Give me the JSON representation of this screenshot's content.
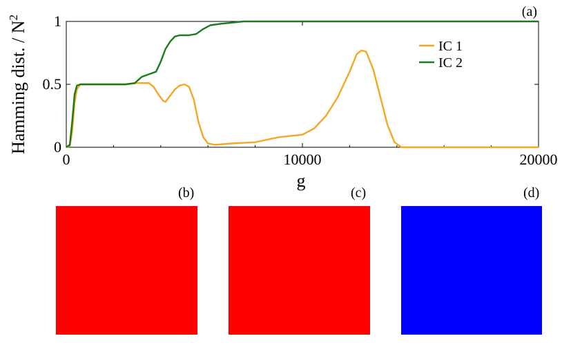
{
  "chart_data": {
    "type": "line",
    "panel_label": "(a)",
    "xlabel": "g",
    "ylabel": "Hamming dist. / N",
    "ylabel_superscript": "2",
    "xlim": [
      0,
      20000
    ],
    "ylim": [
      0,
      1
    ],
    "x_ticks": [
      0,
      10000,
      20000
    ],
    "x_tick_labels": [
      "0",
      "10000",
      "20000"
    ],
    "y_ticks": [
      0,
      0.5,
      1
    ],
    "y_tick_labels": [
      "0",
      "0.5",
      "1"
    ],
    "grid": false,
    "legend_position": "top-right",
    "series": [
      {
        "name": "IC 1",
        "color": "#f5a623",
        "points": [
          [
            0,
            0
          ],
          [
            150,
            0.01
          ],
          [
            250,
            0.12
          ],
          [
            350,
            0.35
          ],
          [
            450,
            0.46
          ],
          [
            600,
            0.5
          ],
          [
            1000,
            0.5
          ],
          [
            1500,
            0.5
          ],
          [
            2000,
            0.5
          ],
          [
            2500,
            0.5
          ],
          [
            3000,
            0.51
          ],
          [
            3300,
            0.51
          ],
          [
            3500,
            0.51
          ],
          [
            3700,
            0.48
          ],
          [
            3900,
            0.42
          ],
          [
            4100,
            0.37
          ],
          [
            4200,
            0.36
          ],
          [
            4400,
            0.41
          ],
          [
            4600,
            0.46
          ],
          [
            4800,
            0.49
          ],
          [
            5000,
            0.5
          ],
          [
            5200,
            0.48
          ],
          [
            5400,
            0.38
          ],
          [
            5600,
            0.2
          ],
          [
            5800,
            0.08
          ],
          [
            6000,
            0.03
          ],
          [
            6300,
            0.02
          ],
          [
            7000,
            0.03
          ],
          [
            8000,
            0.04
          ],
          [
            9000,
            0.08
          ],
          [
            10000,
            0.1
          ],
          [
            10500,
            0.15
          ],
          [
            11000,
            0.25
          ],
          [
            11500,
            0.4
          ],
          [
            12000,
            0.6
          ],
          [
            12300,
            0.74
          ],
          [
            12500,
            0.77
          ],
          [
            12700,
            0.76
          ],
          [
            13000,
            0.62
          ],
          [
            13300,
            0.4
          ],
          [
            13600,
            0.18
          ],
          [
            13900,
            0.04
          ],
          [
            14200,
            0
          ],
          [
            20000,
            0
          ]
        ]
      },
      {
        "name": "IC 2",
        "color": "#1a7a1a",
        "points": [
          [
            0,
            0
          ],
          [
            150,
            0.02
          ],
          [
            250,
            0.2
          ],
          [
            350,
            0.42
          ],
          [
            450,
            0.49
          ],
          [
            600,
            0.5
          ],
          [
            1000,
            0.5
          ],
          [
            1500,
            0.5
          ],
          [
            2000,
            0.5
          ],
          [
            2500,
            0.5
          ],
          [
            2900,
            0.51
          ],
          [
            3200,
            0.56
          ],
          [
            3500,
            0.58
          ],
          [
            3800,
            0.6
          ],
          [
            4000,
            0.68
          ],
          [
            4200,
            0.78
          ],
          [
            4400,
            0.84
          ],
          [
            4600,
            0.88
          ],
          [
            4800,
            0.89
          ],
          [
            5200,
            0.89
          ],
          [
            5500,
            0.9
          ],
          [
            5800,
            0.94
          ],
          [
            6100,
            0.97
          ],
          [
            6500,
            0.98
          ],
          [
            7000,
            0.99
          ],
          [
            7500,
            1.0
          ],
          [
            20000,
            1.0
          ]
        ]
      }
    ]
  },
  "panels": [
    {
      "label": "(b)",
      "color": "#ff0000"
    },
    {
      "label": "(c)",
      "color": "#ff0000"
    },
    {
      "label": "(d)",
      "color": "#0000ff"
    }
  ]
}
